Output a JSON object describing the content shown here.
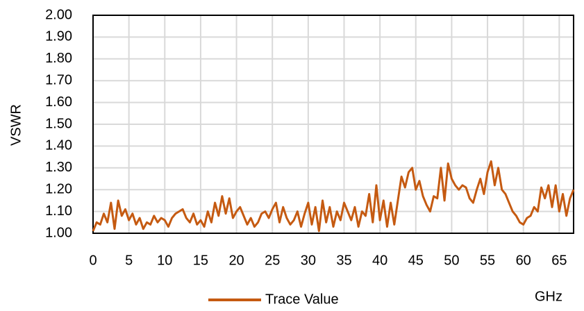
{
  "chart_data": {
    "type": "line",
    "y_label": "VSWR",
    "x_label": "GHz",
    "x": [
      0,
      0.5,
      1,
      1.5,
      2,
      2.5,
      3,
      3.5,
      4,
      4.5,
      5,
      5.5,
      6,
      6.5,
      7,
      7.5,
      8,
      8.5,
      9,
      9.5,
      10,
      10.5,
      11,
      11.5,
      12,
      12.5,
      13,
      13.5,
      14,
      14.5,
      15,
      15.5,
      16,
      16.5,
      17,
      17.5,
      18,
      18.5,
      19,
      19.5,
      20,
      20.5,
      21,
      21.5,
      22,
      22.5,
      23,
      23.5,
      24,
      24.5,
      25,
      25.5,
      26,
      26.5,
      27,
      27.5,
      28,
      28.5,
      29,
      29.5,
      30,
      30.5,
      31,
      31.5,
      32,
      32.5,
      33,
      33.5,
      34,
      34.5,
      35,
      35.5,
      36,
      36.5,
      37,
      37.5,
      38,
      38.5,
      39,
      39.5,
      40,
      40.5,
      41,
      41.5,
      42,
      42.5,
      43,
      43.5,
      44,
      44.5,
      45,
      45.5,
      46,
      46.5,
      47,
      47.5,
      48,
      48.5,
      49,
      49.5,
      50,
      50.5,
      51,
      51.5,
      52,
      52.5,
      53,
      53.5,
      54,
      54.5,
      55,
      55.5,
      56,
      56.5,
      57,
      57.5,
      58,
      58.5,
      59,
      59.5,
      60,
      60.5,
      61,
      61.5,
      62,
      62.5,
      63,
      63.5,
      64,
      64.5,
      65,
      65.5,
      66,
      66.5,
      67
    ],
    "series": [
      {
        "name": "Trace Value",
        "color": "#c55a11",
        "values": [
          1.01,
          1.05,
          1.04,
          1.09,
          1.05,
          1.14,
          1.02,
          1.15,
          1.08,
          1.11,
          1.06,
          1.09,
          1.04,
          1.07,
          1.02,
          1.05,
          1.04,
          1.08,
          1.05,
          1.07,
          1.06,
          1.03,
          1.07,
          1.09,
          1.1,
          1.11,
          1.07,
          1.05,
          1.09,
          1.04,
          1.06,
          1.03,
          1.1,
          1.05,
          1.14,
          1.08,
          1.17,
          1.09,
          1.16,
          1.07,
          1.1,
          1.12,
          1.08,
          1.04,
          1.07,
          1.03,
          1.05,
          1.09,
          1.1,
          1.07,
          1.11,
          1.14,
          1.05,
          1.12,
          1.07,
          1.04,
          1.06,
          1.1,
          1.03,
          1.09,
          1.14,
          1.04,
          1.12,
          1.01,
          1.15,
          1.05,
          1.12,
          1.03,
          1.1,
          1.06,
          1.14,
          1.1,
          1.06,
          1.12,
          1.03,
          1.1,
          1.08,
          1.18,
          1.05,
          1.22,
          1.06,
          1.15,
          1.03,
          1.14,
          1.04,
          1.15,
          1.26,
          1.21,
          1.28,
          1.3,
          1.2,
          1.24,
          1.17,
          1.13,
          1.1,
          1.17,
          1.16,
          1.3,
          1.15,
          1.32,
          1.25,
          1.22,
          1.2,
          1.22,
          1.21,
          1.16,
          1.14,
          1.2,
          1.25,
          1.18,
          1.28,
          1.33,
          1.22,
          1.3,
          1.2,
          1.18,
          1.14,
          1.1,
          1.08,
          1.05,
          1.04,
          1.07,
          1.08,
          1.12,
          1.1,
          1.21,
          1.16,
          1.22,
          1.12,
          1.22,
          1.1,
          1.18,
          1.08,
          1.16,
          1.2
        ]
      }
    ],
    "xlim": [
      0,
      67
    ],
    "xticks": [
      0,
      5,
      10,
      15,
      20,
      25,
      30,
      35,
      40,
      45,
      50,
      55,
      60,
      65
    ],
    "ylim": [
      1,
      2
    ],
    "yticks": [
      {
        "value": 1,
        "label": "1.00"
      },
      {
        "value": 1.1,
        "label": "1.10"
      },
      {
        "value": 1.2,
        "label": "1.20"
      },
      {
        "value": 1.3,
        "label": "1.30"
      },
      {
        "value": 1.4,
        "label": "1.40"
      },
      {
        "value": 1.5,
        "label": "1.50"
      },
      {
        "value": 1.6,
        "label": "1.60"
      },
      {
        "value": 1.7,
        "label": "1.70"
      },
      {
        "value": 1.8,
        "label": "1.80"
      },
      {
        "value": 1.9,
        "label": "1.90"
      },
      {
        "value": 2,
        "label": "2.00"
      }
    ],
    "grid": true
  }
}
